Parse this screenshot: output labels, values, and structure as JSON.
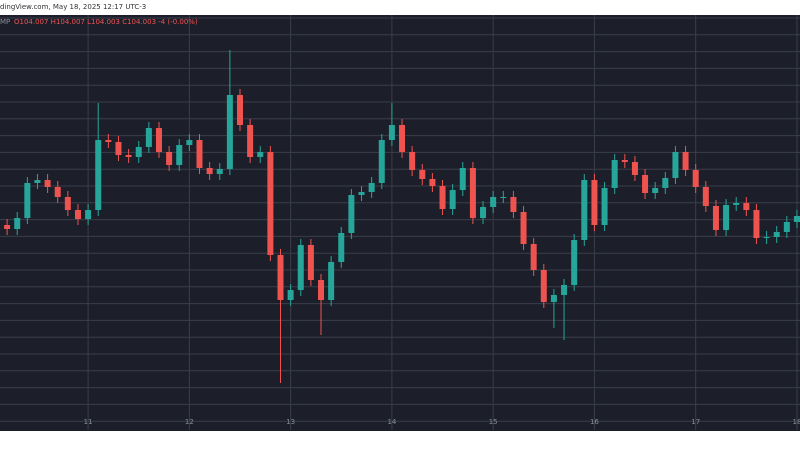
{
  "header": "dingView.com, May 18, 2025 12:17 UTC-3",
  "chart_data": {
    "type": "candlestick",
    "symbol": "MP",
    "legend": "O104.007 H104.007 L104.003 C104.003 -4 (-0.00%)",
    "up_color": "#26a69a",
    "down_color": "#ef5350",
    "grid": true,
    "xlim": [
      10.13,
      18.03
    ],
    "xticks": [
      11,
      12,
      13,
      14,
      15,
      16,
      17,
      18
    ],
    "ylim": [
      101.9,
      106.05
    ],
    "x": [
      10.2,
      10.3,
      10.4,
      10.5,
      10.6,
      10.7,
      10.8,
      10.9,
      11.0,
      11.1,
      11.2,
      11.3,
      11.4,
      11.5,
      11.6,
      11.7,
      11.8,
      11.9,
      12.0,
      12.1,
      12.2,
      12.3,
      12.4,
      12.5,
      12.6,
      12.7,
      12.8,
      12.9,
      13.0,
      13.1,
      13.2,
      13.3,
      13.4,
      13.5,
      13.6,
      13.7,
      13.8,
      13.9,
      14.0,
      14.1,
      14.2,
      14.3,
      14.4,
      14.5,
      14.6,
      14.7,
      14.8,
      14.9,
      15.0,
      15.1,
      15.2,
      15.3,
      15.4,
      15.5,
      15.6,
      15.7,
      15.8,
      15.9,
      16.0,
      16.1,
      16.2,
      16.3,
      16.4,
      16.5,
      16.6,
      16.7,
      16.8,
      16.9,
      17.0,
      17.1,
      17.2,
      17.3,
      17.4,
      17.5,
      17.6,
      17.7,
      17.8,
      17.9,
      18.0
    ],
    "open": [
      103.95,
      103.91,
      104.02,
      104.37,
      104.4,
      104.33,
      104.23,
      104.1,
      104.01,
      104.1,
      104.8,
      104.78,
      104.65,
      104.63,
      104.73,
      104.92,
      104.68,
      104.55,
      104.75,
      104.8,
      104.52,
      104.46,
      104.51,
      105.25,
      104.95,
      104.63,
      104.68,
      103.65,
      103.2,
      103.3,
      103.75,
      103.4,
      103.2,
      103.58,
      103.87,
      104.25,
      104.28,
      104.37,
      104.8,
      104.95,
      104.68,
      104.5,
      104.41,
      104.34,
      104.11,
      104.3,
      104.52,
      104.02,
      104.13,
      104.23,
      104.23,
      104.08,
      103.76,
      103.5,
      103.18,
      103.25,
      103.35,
      103.8,
      104.4,
      103.95,
      104.32,
      104.6,
      104.58,
      104.45,
      104.27,
      104.32,
      104.42,
      104.68,
      104.5,
      104.33,
      104.14,
      103.9,
      104.15,
      104.17,
      104.1,
      103.82,
      103.83,
      103.88,
      103.98
    ],
    "high": [
      104.01,
      104.08,
      104.43,
      104.46,
      104.46,
      104.39,
      104.29,
      104.16,
      104.16,
      105.17,
      104.86,
      104.84,
      104.71,
      104.79,
      104.98,
      104.98,
      104.74,
      104.81,
      104.86,
      104.86,
      104.58,
      104.57,
      105.7,
      105.31,
      105.01,
      104.74,
      104.74,
      103.71,
      103.36,
      103.81,
      103.81,
      103.46,
      103.64,
      103.93,
      104.31,
      104.34,
      104.43,
      104.86,
      105.17,
      105.01,
      104.74,
      104.56,
      104.47,
      104.4,
      104.36,
      104.58,
      104.58,
      104.19,
      104.29,
      104.29,
      104.29,
      104.14,
      103.82,
      103.56,
      103.31,
      103.41,
      103.86,
      104.46,
      104.46,
      104.38,
      104.66,
      104.66,
      104.64,
      104.51,
      104.38,
      104.48,
      104.74,
      104.74,
      104.56,
      104.39,
      104.2,
      104.21,
      104.23,
      104.23,
      104.16,
      103.89,
      103.94,
      104.04,
      104.1
    ],
    "low": [
      103.85,
      103.85,
      103.96,
      104.31,
      104.27,
      104.17,
      104.04,
      103.95,
      103.95,
      104.04,
      104.72,
      104.59,
      104.57,
      104.57,
      104.67,
      104.62,
      104.49,
      104.49,
      104.69,
      104.46,
      104.4,
      104.4,
      104.45,
      104.89,
      104.57,
      104.57,
      103.59,
      102.37,
      103.14,
      103.24,
      103.34,
      102.85,
      103.14,
      103.52,
      103.81,
      104.19,
      104.22,
      104.31,
      104.74,
      104.62,
      104.44,
      104.35,
      104.28,
      104.05,
      104.05,
      104.24,
      103.96,
      103.96,
      104.07,
      104.17,
      104.02,
      103.7,
      103.44,
      103.12,
      102.92,
      102.8,
      103.29,
      103.74,
      103.89,
      103.89,
      104.26,
      104.52,
      104.39,
      104.21,
      104.21,
      104.26,
      104.36,
      104.44,
      104.27,
      104.08,
      103.84,
      103.84,
      104.09,
      104.04,
      103.76,
      103.76,
      103.77,
      103.82,
      103.92
    ],
    "close": [
      103.91,
      104.02,
      104.37,
      104.4,
      104.33,
      104.23,
      104.1,
      104.01,
      104.1,
      104.8,
      104.78,
      104.65,
      104.63,
      104.73,
      104.92,
      104.68,
      104.55,
      104.75,
      104.8,
      104.52,
      104.46,
      104.51,
      105.25,
      104.95,
      104.63,
      104.68,
      103.65,
      103.2,
      103.3,
      103.75,
      103.4,
      103.2,
      103.58,
      103.87,
      104.25,
      104.28,
      104.37,
      104.8,
      104.95,
      104.68,
      104.5,
      104.41,
      104.34,
      104.11,
      104.3,
      104.52,
      104.02,
      104.13,
      104.23,
      104.23,
      104.08,
      103.76,
      103.5,
      103.18,
      103.25,
      103.35,
      103.8,
      104.4,
      103.95,
      104.32,
      104.6,
      104.58,
      104.45,
      104.27,
      104.32,
      104.42,
      104.68,
      104.5,
      104.33,
      104.14,
      103.9,
      104.15,
      104.17,
      104.1,
      103.82,
      103.83,
      103.88,
      103.98,
      104.04
    ]
  }
}
